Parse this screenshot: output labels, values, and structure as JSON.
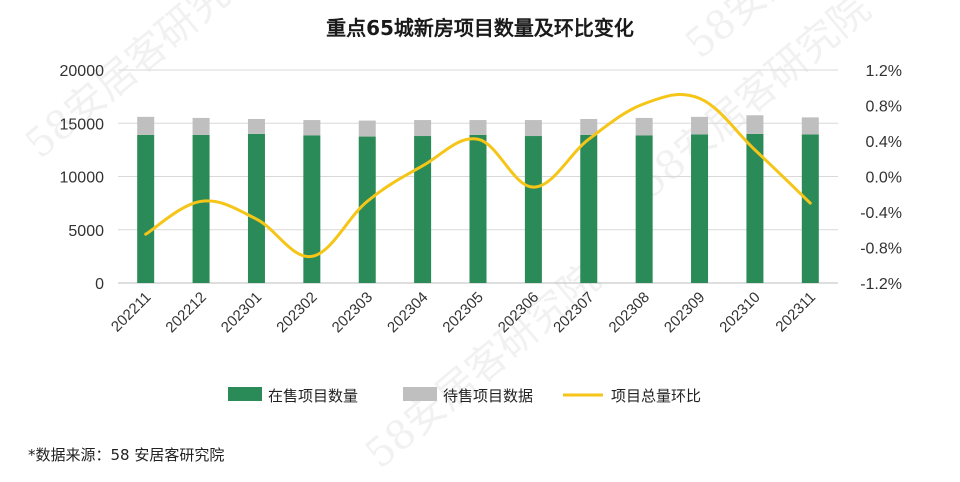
{
  "chart_data": {
    "type": "bar",
    "title": "重点65城新房项目数量及环比变化",
    "categories": [
      "202211",
      "202212",
      "202301",
      "202302",
      "202303",
      "202304",
      "202305",
      "202306",
      "202307",
      "202308",
      "202309",
      "202310",
      "202311"
    ],
    "series": [
      {
        "name": "在售项目数量",
        "type": "bar",
        "stack": "s",
        "axis": "left",
        "color": "#2a8a58",
        "values": [
          13900,
          13900,
          14000,
          13850,
          13750,
          13800,
          13900,
          13800,
          13900,
          13850,
          13950,
          14000,
          13950
        ]
      },
      {
        "name": "待售项目数据",
        "type": "bar",
        "stack": "s",
        "axis": "left",
        "color": "#bfbfbf",
        "values": [
          1700,
          1600,
          1400,
          1450,
          1500,
          1500,
          1400,
          1500,
          1500,
          1650,
          1650,
          1750,
          1600
        ]
      },
      {
        "name": "项目总量环比",
        "type": "line",
        "axis": "right",
        "color": "#f5c518",
        "unit": "%",
        "values": [
          -0.65,
          -0.28,
          -0.48,
          -0.9,
          -0.28,
          0.12,
          0.42,
          -0.12,
          0.42,
          0.82,
          0.88,
          0.3,
          -0.3
        ]
      }
    ],
    "ylim_left": [
      0,
      20000
    ],
    "yticks_left": [
      "20000",
      "15000",
      "10000",
      "5000",
      "0"
    ],
    "ylim_right": [
      -1.2,
      1.2
    ],
    "yticks_right": [
      "1.2%",
      "0.8%",
      "0.4%",
      "0.0%",
      "-0.4%",
      "-0.8%",
      "-1.2%"
    ],
    "grid": true,
    "legend_position": "bottom"
  },
  "source_note": "*数据来源：58 安居客研究院",
  "watermark_text": "58安居客研究院"
}
